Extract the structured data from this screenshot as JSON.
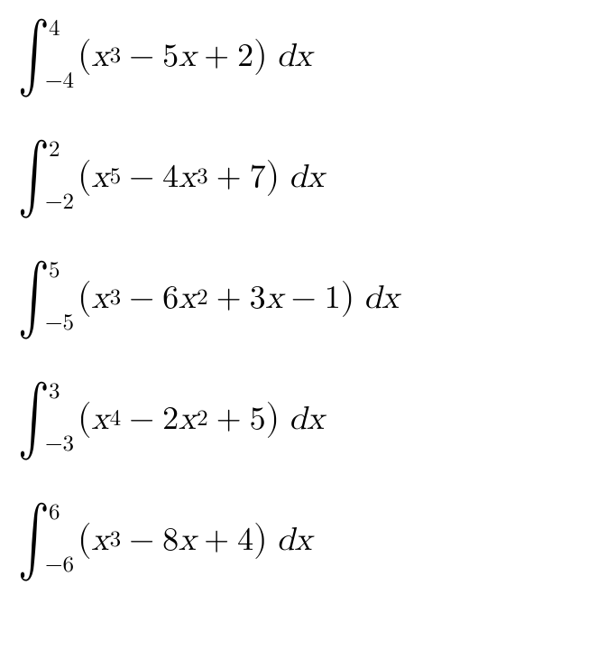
{
  "background_color": "#ffffff",
  "text_color": "#000000",
  "font_family": "Latin Modern Math, STIX Two Math, Cambria Math, Times New Roman, serif",
  "base_fontsize": 36,
  "superscript_fontsize": 25,
  "limit_fontsize": 25,
  "equations": [
    {
      "upper": "4",
      "lower": "−4",
      "terms": [
        {
          "coef": "",
          "var": "x",
          "exp": "3"
        },
        {
          "op": "−",
          "coef": "5",
          "var": "x",
          "exp": ""
        },
        {
          "op": "+",
          "coef": "2",
          "var": "",
          "exp": ""
        }
      ]
    },
    {
      "upper": "2",
      "lower": "−2",
      "terms": [
        {
          "coef": "",
          "var": "x",
          "exp": "5"
        },
        {
          "op": "−",
          "coef": "4",
          "var": "x",
          "exp": "3"
        },
        {
          "op": "+",
          "coef": "7",
          "var": "",
          "exp": ""
        }
      ]
    },
    {
      "upper": "5",
      "lower": "−5",
      "terms": [
        {
          "coef": "",
          "var": "x",
          "exp": "3"
        },
        {
          "op": "−",
          "coef": "6",
          "var": "x",
          "exp": "2"
        },
        {
          "op": "+",
          "coef": "3",
          "var": "x",
          "exp": ""
        },
        {
          "op": "−",
          "coef": "1",
          "var": "",
          "exp": ""
        }
      ]
    },
    {
      "upper": "3",
      "lower": "−3",
      "terms": [
        {
          "coef": "",
          "var": "x",
          "exp": "4"
        },
        {
          "op": "−",
          "coef": "2",
          "var": "x",
          "exp": "2"
        },
        {
          "op": "+",
          "coef": "5",
          "var": "",
          "exp": ""
        }
      ]
    },
    {
      "upper": "6",
      "lower": "−6",
      "terms": [
        {
          "coef": "",
          "var": "x",
          "exp": "3"
        },
        {
          "op": "−",
          "coef": "8",
          "var": "x",
          "exp": ""
        },
        {
          "op": "+",
          "coef": "4",
          "var": "",
          "exp": ""
        }
      ]
    }
  ],
  "differential": {
    "d": "d",
    "x": "x"
  },
  "integral_symbol": "∫"
}
